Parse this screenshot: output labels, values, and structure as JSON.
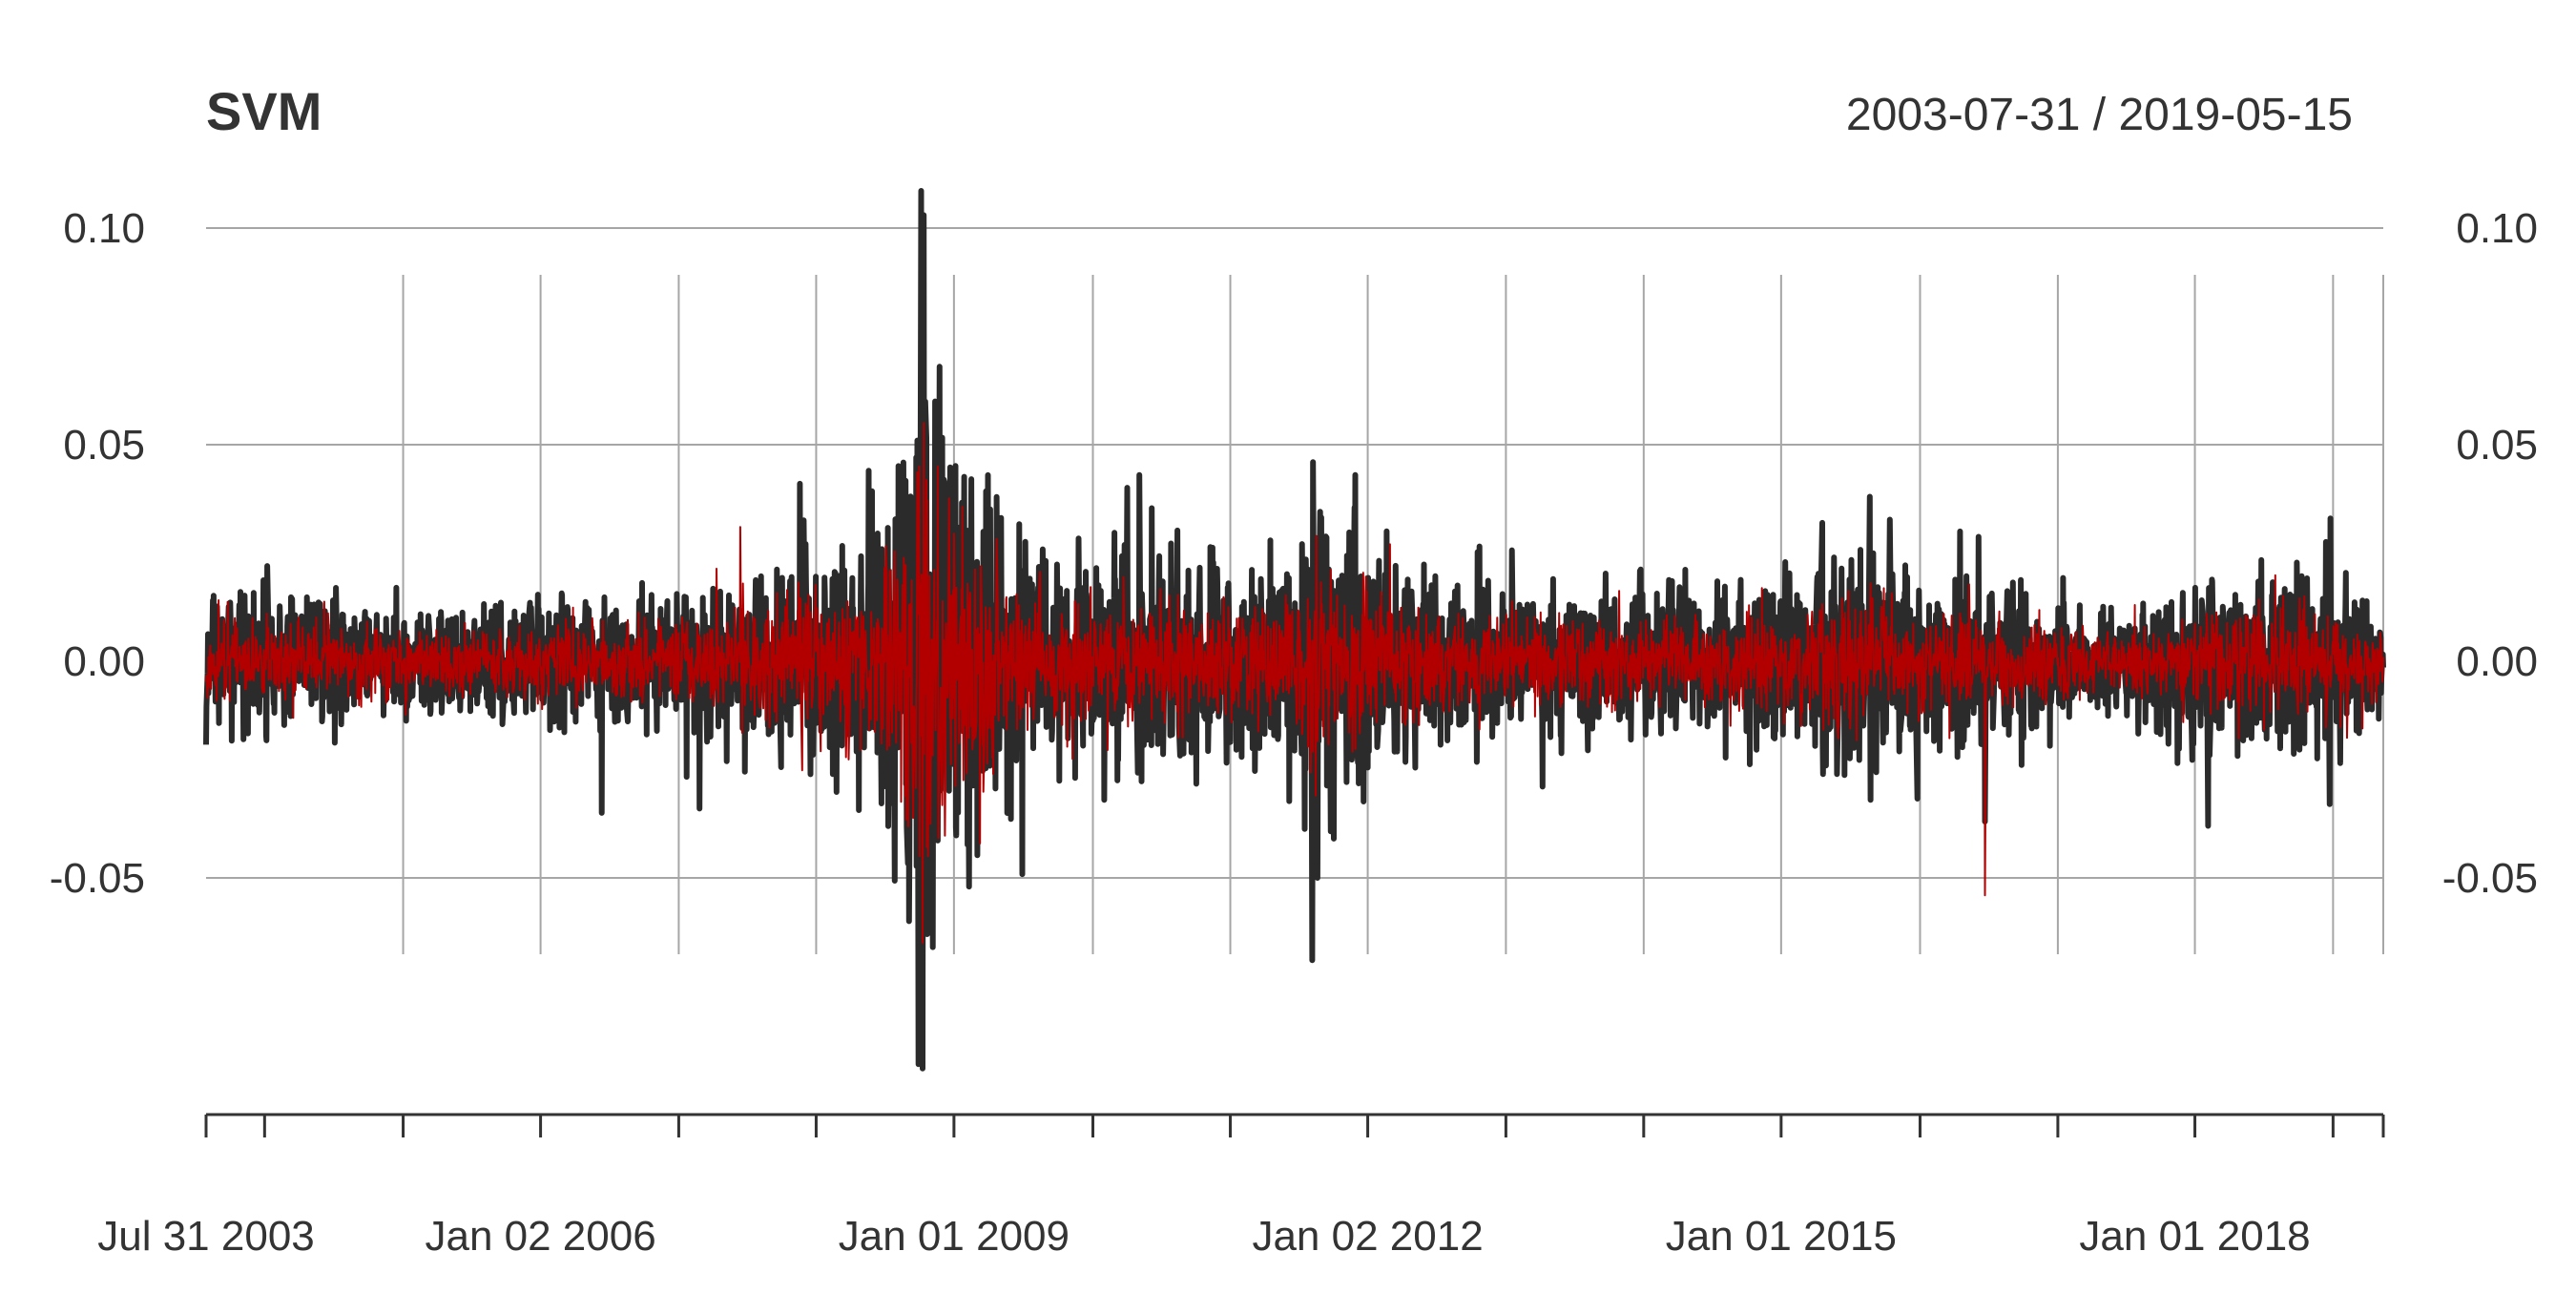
{
  "chart_data": {
    "type": "line",
    "title": "SVM",
    "date_range": "2003-07-31 / 2019-05-15",
    "start": "2003-07-31",
    "end": "2019-05-15",
    "ylim": [
      -0.1,
      0.11
    ],
    "yticks": [
      0.1,
      0.05,
      0.0,
      -0.05
    ],
    "ytick_labels": [
      "0.10",
      "0.05",
      "0.00",
      "-0.05"
    ],
    "xtick_labels": [
      "Jul 31 2003",
      "Jan 02 2006",
      "Jan 01 2009",
      "Jan 02 2012",
      "Jan 01 2015",
      "Jan 01 2018"
    ],
    "xtick_dates": [
      "2003-07-31",
      "2006-01-02",
      "2009-01-01",
      "2012-01-02",
      "2015-01-01",
      "2018-01-01"
    ],
    "minor_tick_dates": [
      "2003-07-31",
      "2004-01-02",
      "2005-01-03",
      "2006-01-02",
      "2007-01-03",
      "2008-01-02",
      "2009-01-01",
      "2010-01-04",
      "2011-01-03",
      "2012-01-02",
      "2013-01-02",
      "2014-01-02",
      "2015-01-01",
      "2016-01-04",
      "2017-01-03",
      "2018-01-01",
      "2019-01-02",
      "2019-05-15"
    ],
    "grid": true,
    "series": [
      {
        "color": "#2b2b2b",
        "volatility_dates": [
          "2003-07-31",
          "2005-01-01",
          "2006-06-01",
          "2007-03-01",
          "2007-08-15",
          "2008-01-15",
          "2008-06-01",
          "2008-09-15",
          "2008-10-15",
          "2008-12-15",
          "2009-03-15",
          "2009-06-01",
          "2009-09-01",
          "2010-05-15",
          "2010-09-01",
          "2011-06-01",
          "2011-08-15",
          "2011-10-15",
          "2012-06-01",
          "2013-06-01",
          "2014-06-01",
          "2015-08-25",
          "2016-01-15",
          "2016-06-24",
          "2017-06-01",
          "2018-02-05",
          "2018-10-15",
          "2019-05-15"
        ],
        "volatility": [
          0.009,
          0.007,
          0.008,
          0.009,
          0.012,
          0.016,
          0.016,
          0.035,
          0.045,
          0.032,
          0.024,
          0.017,
          0.012,
          0.015,
          0.012,
          0.012,
          0.025,
          0.018,
          0.01,
          0.009,
          0.008,
          0.014,
          0.011,
          0.01,
          0.006,
          0.011,
          0.01,
          0.008
        ],
        "extremes": [
          [
            "2004-01-09",
            0.022
          ],
          [
            "2006-06-13",
            -0.035
          ],
          [
            "2007-11-20",
            0.041
          ],
          [
            "2007-02-27",
            -0.034
          ],
          [
            "2008-05-20",
            0.044
          ],
          [
            "2008-09-29",
            -0.093
          ],
          [
            "2008-10-06",
            0.11
          ],
          [
            "2008-10-10",
            -0.094
          ],
          [
            "2008-10-13",
            0.103
          ],
          [
            "2008-10-22",
            -0.063
          ],
          [
            "2008-11-06",
            -0.066
          ],
          [
            "2008-11-24",
            0.068
          ],
          [
            "2008-12-08",
            0.041
          ],
          [
            "2009-02-10",
            -0.052
          ],
          [
            "2010-05-07",
            0.043
          ],
          [
            "2011-08-08",
            -0.069
          ],
          [
            "2011-08-10",
            0.046
          ],
          [
            "2011-08-22",
            -0.05
          ],
          [
            "2011-11-30",
            0.043
          ],
          [
            "2015-08-24",
            0.038
          ],
          [
            "2015-08-26",
            -0.032
          ],
          [
            "2016-06-24",
            -0.037
          ],
          [
            "2018-02-05",
            -0.038
          ],
          [
            "2018-12-26",
            0.033
          ],
          [
            "2018-12-24",
            -0.033
          ]
        ]
      },
      {
        "color": "#b20000",
        "volatility_scale": 0.55,
        "extremes": [
          [
            "2008-10-13",
            0.055
          ],
          [
            "2008-10-10",
            -0.065
          ],
          [
            "2016-06-24",
            -0.054
          ],
          [
            "2007-06-15",
            0.031
          ],
          [
            "2012-03-01",
            0.027
          ],
          [
            "2009-04-15",
            -0.026
          ]
        ]
      }
    ]
  }
}
